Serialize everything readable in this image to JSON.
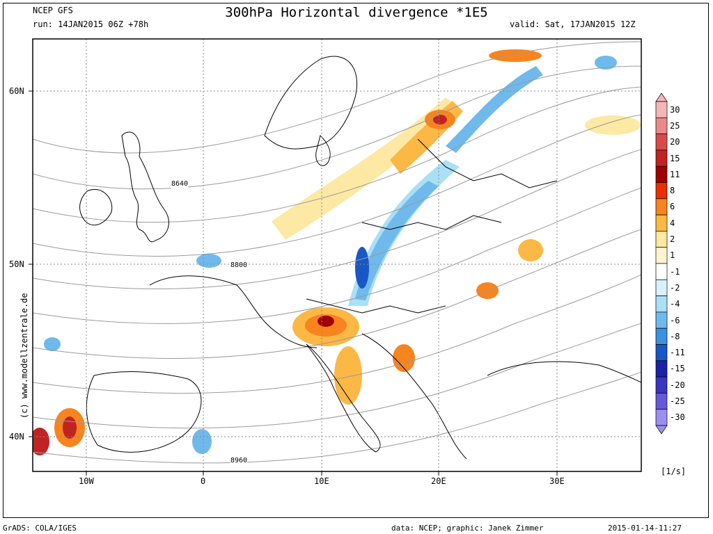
{
  "header": {
    "model": "NCEP GFS",
    "run": "run: 14JAN2015 06Z +78h",
    "title": "300hPa Horizontal divergence *1E5",
    "valid": "valid: Sat, 17JAN2015 12Z"
  },
  "watermark": "(c) www.modellzentrale.de",
  "axes": {
    "lat_labels": [
      "60N",
      "50N",
      "40N"
    ],
    "lon_labels": [
      "10W",
      "0",
      "10E",
      "20E",
      "30E"
    ]
  },
  "contour_labels": [
    "8640",
    "8800",
    "8960"
  ],
  "colorbar": {
    "labels": [
      "30",
      "25",
      "20",
      "15",
      "11",
      "8",
      "6",
      "4",
      "2",
      "1",
      "-1",
      "-2",
      "-4",
      "-6",
      "-8",
      "-11",
      "-15",
      "-20",
      "-25",
      "-30"
    ],
    "colors": [
      "#f4b6b6",
      "#ea8a8a",
      "#d94a4a",
      "#c12323",
      "#a00000",
      "#e83000",
      "#f7841e",
      "#fbb845",
      "#fde9a4",
      "#fff4d2",
      "#ffffff",
      "#d8f1fb",
      "#a9e0f5",
      "#6fb9ec",
      "#3d8fe0",
      "#1a57c6",
      "#1b22a6",
      "#3a34c2",
      "#6659d8",
      "#9b8ff0"
    ],
    "unit": "[1/s]"
  },
  "footer": {
    "left": "GrADS: COLA/IGES",
    "center": "data: NCEP; graphic: Janek Zimmer",
    "right": "2015-01-14-11:27"
  }
}
